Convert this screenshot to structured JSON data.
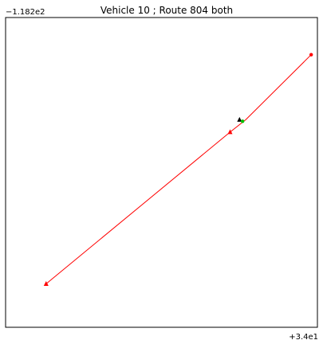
{
  "chart_data": {
    "type": "line",
    "title": "Vehicle 10 ; Route 804 both",
    "y_offset_label": "−1.182e2",
    "x_offset_label": "+3.4e1",
    "grid": false,
    "legend": "none",
    "xlim": [
      0,
      1
    ],
    "ylim": [
      0,
      1
    ],
    "series": [
      {
        "color": "#ff0000",
        "points": [
          [
            0.13,
            0.14
          ],
          [
            0.72,
            0.63
          ],
          [
            0.77,
            0.67
          ],
          [
            0.98,
            0.88
          ]
        ]
      }
    ],
    "markers": [
      {
        "shape": "triangle",
        "color": "#ff0000",
        "x": 0.13,
        "y": 0.14
      },
      {
        "shape": "triangle",
        "color": "#ff0000",
        "x": 0.72,
        "y": 0.63
      },
      {
        "shape": "circle",
        "color": "#ff0000",
        "x": 0.98,
        "y": 0.88
      },
      {
        "shape": "triangle",
        "color": "#000000",
        "x": 0.75,
        "y": 0.67
      },
      {
        "shape": "circle",
        "color": "#00c000",
        "x": 0.76,
        "y": 0.665
      }
    ]
  }
}
